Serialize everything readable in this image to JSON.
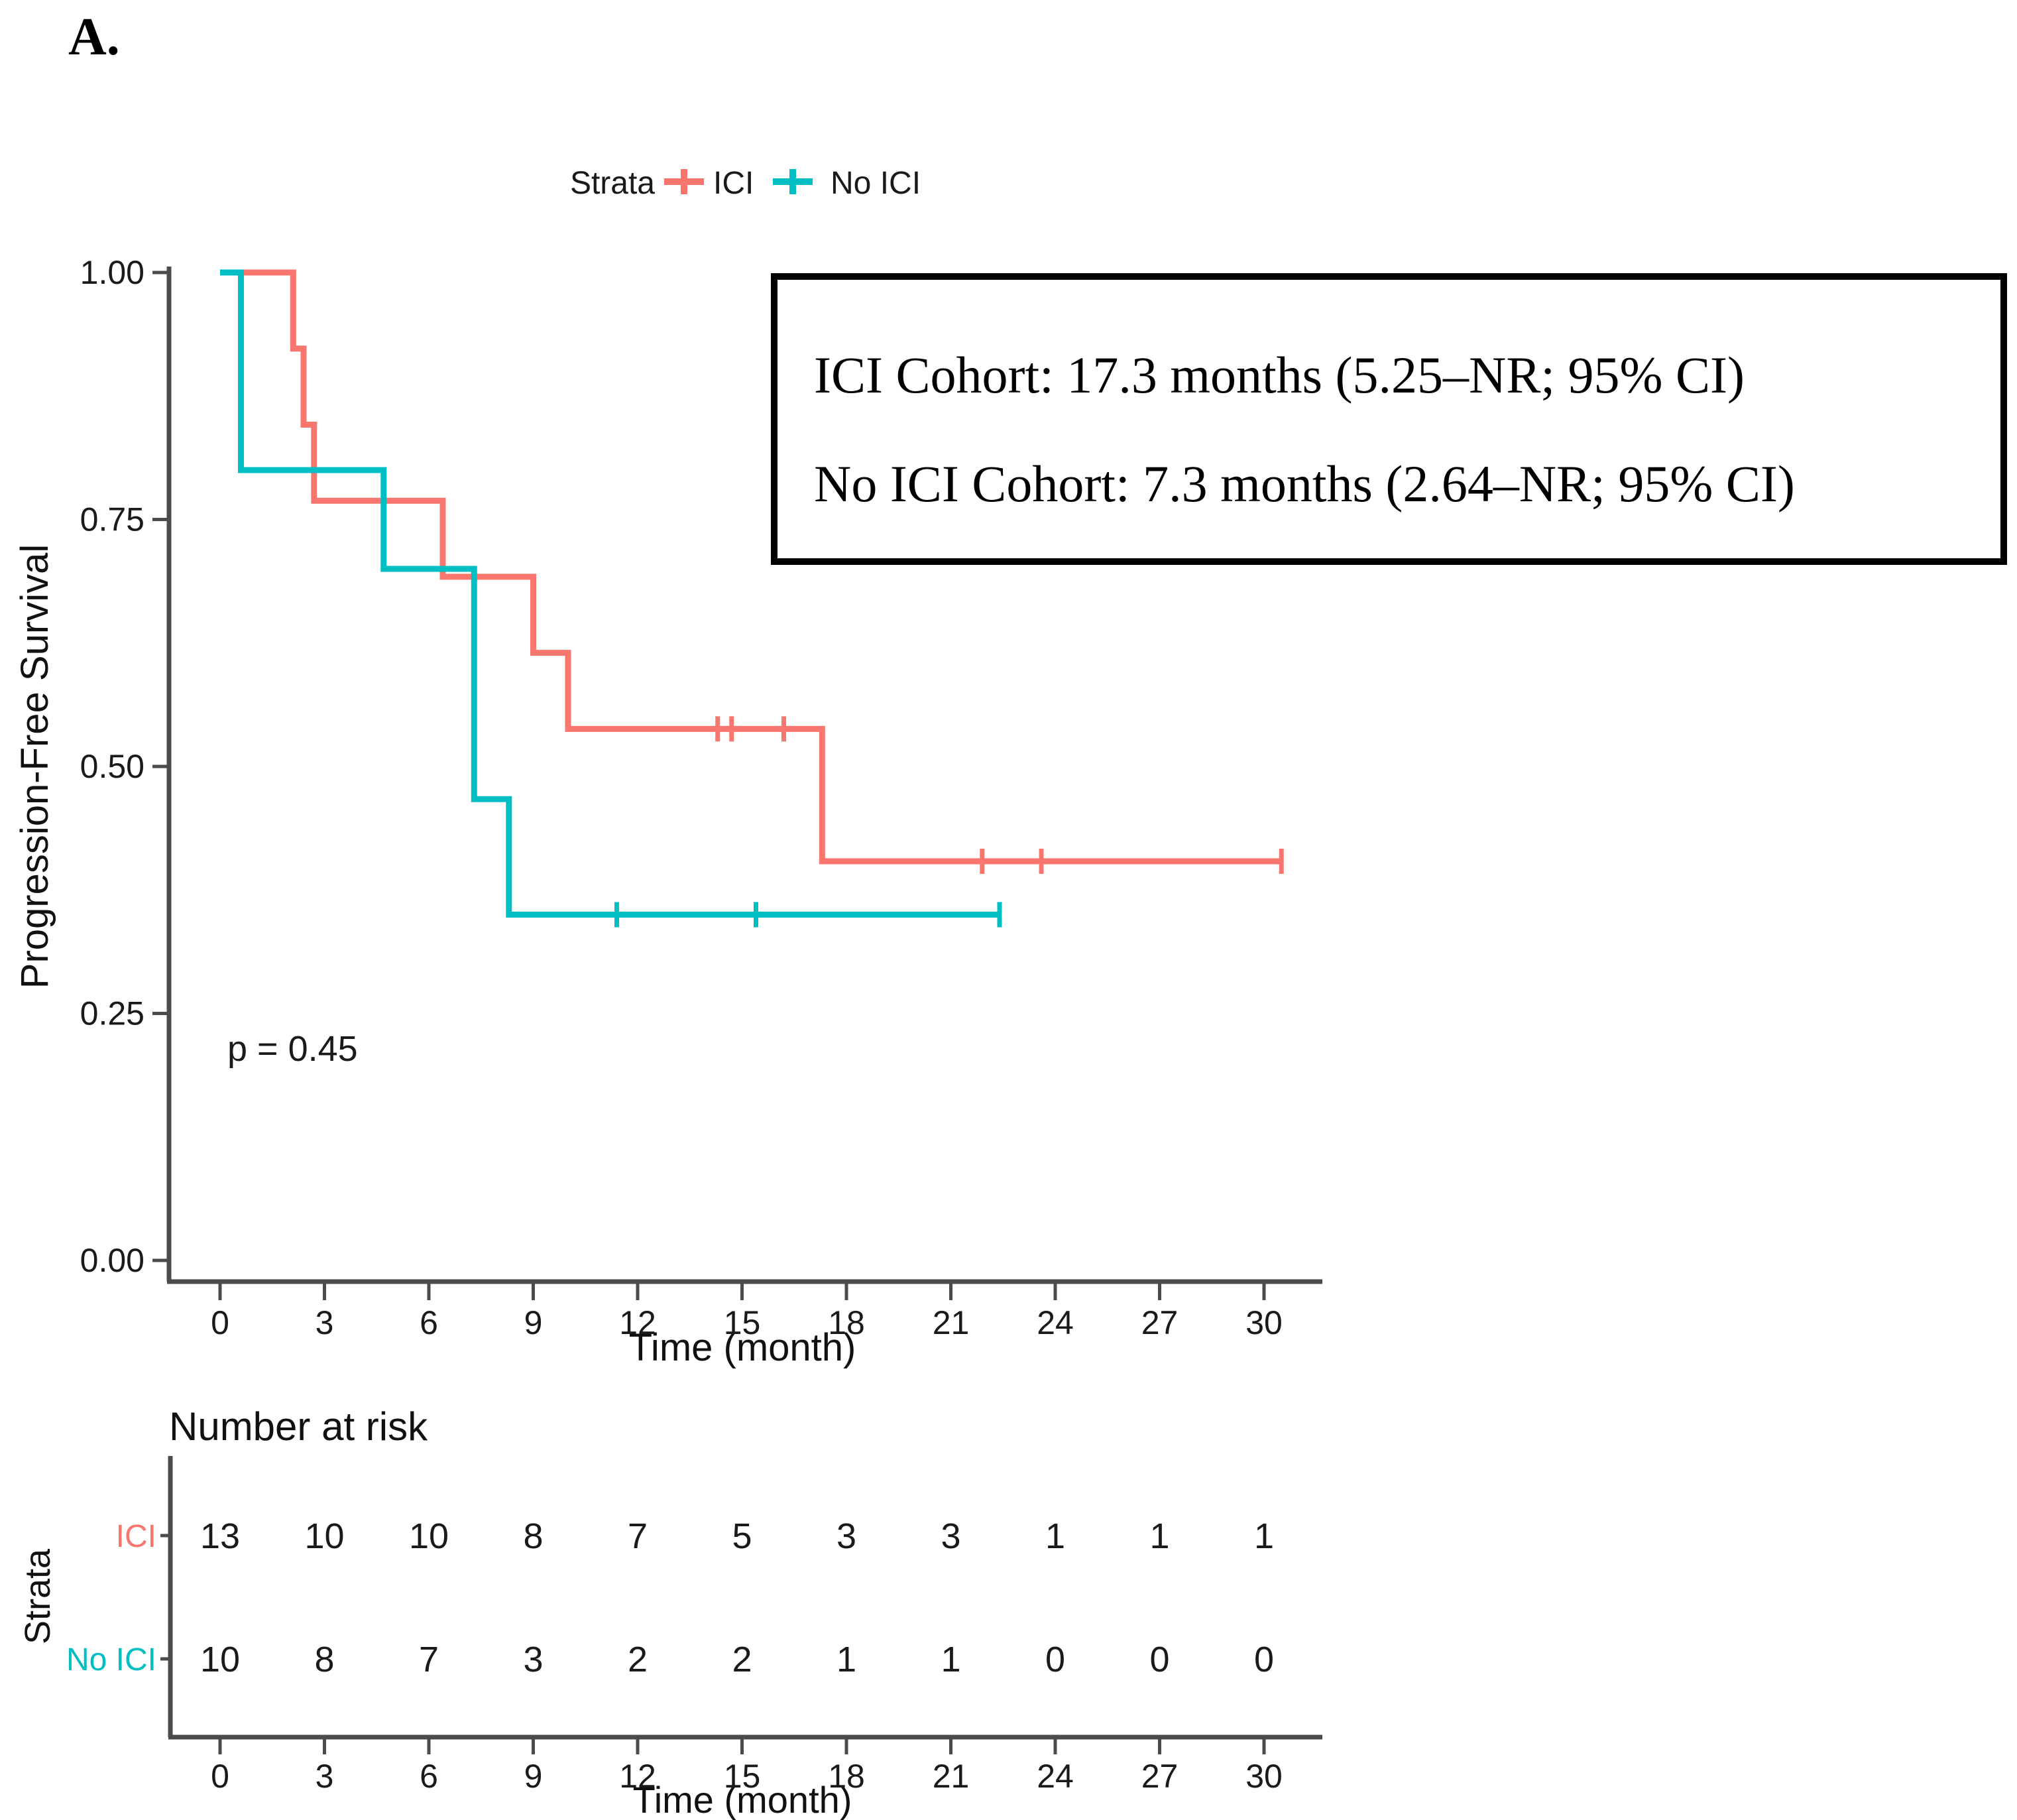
{
  "figure": {
    "panel_label": "A.",
    "background": "#ffffff"
  },
  "legend": {
    "title": "Strata",
    "items": [
      {
        "label": "ICI",
        "color": "#F8766D"
      },
      {
        "label": "No ICI",
        "color": "#00BFC4"
      }
    ]
  },
  "annotation_box": {
    "line1": "ICI Cohort: 17.3 months (5.25–NR; 95% CI)",
    "line2": "No ICI Cohort: 7.3 months (2.64–NR; 95% CI)"
  },
  "p_value_text": "p = 0.45",
  "chart_data": {
    "type": "line",
    "subtype": "kaplan-meier-step-curve",
    "title": "",
    "xlabel": "Time (month)",
    "ylabel": "Progression-Free Survival",
    "xlim": [
      0,
      31.5
    ],
    "ylim": [
      0.0,
      1.0
    ],
    "grid": false,
    "legend_position": "top",
    "xticks": [
      0,
      3,
      6,
      9,
      12,
      15,
      18,
      21,
      24,
      27,
      30
    ],
    "ytick_labels": [
      "0.00",
      "0.25",
      "0.50",
      "0.75",
      "1.00"
    ],
    "ytick_values": [
      0.0,
      0.25,
      0.5,
      0.75,
      1.0
    ],
    "series": [
      {
        "name": "ICI",
        "color": "#F8766D",
        "median_months": 17.3,
        "steps": [
          [
            0,
            1.0
          ],
          [
            2.1,
            1.0
          ],
          [
            2.1,
            0.923
          ],
          [
            2.4,
            0.923
          ],
          [
            2.4,
            0.846
          ],
          [
            2.7,
            0.846
          ],
          [
            2.7,
            0.769
          ],
          [
            6.4,
            0.769
          ],
          [
            6.4,
            0.692
          ],
          [
            9.0,
            0.692
          ],
          [
            9.0,
            0.615
          ],
          [
            10.0,
            0.615
          ],
          [
            10.0,
            0.538
          ],
          [
            17.3,
            0.538
          ],
          [
            17.3,
            0.404
          ],
          [
            30.5,
            0.404
          ]
        ],
        "censor_marks": [
          [
            14.3,
            0.538
          ],
          [
            14.7,
            0.538
          ],
          [
            16.2,
            0.538
          ],
          [
            21.9,
            0.404
          ],
          [
            23.6,
            0.404
          ],
          [
            30.5,
            0.404
          ]
        ]
      },
      {
        "name": "No ICI",
        "color": "#00BFC4",
        "median_months": 7.3,
        "steps": [
          [
            0,
            1.0
          ],
          [
            0.6,
            1.0
          ],
          [
            0.6,
            0.8
          ],
          [
            4.7,
            0.8
          ],
          [
            4.7,
            0.7
          ],
          [
            7.3,
            0.7
          ],
          [
            7.3,
            0.467
          ],
          [
            8.3,
            0.467
          ],
          [
            8.3,
            0.35
          ],
          [
            22.4,
            0.35
          ]
        ],
        "censor_marks": [
          [
            11.4,
            0.35
          ],
          [
            15.4,
            0.35
          ],
          [
            22.4,
            0.35
          ]
        ]
      }
    ]
  },
  "risk_table": {
    "heading": "Number at risk",
    "axis_label": "Strata",
    "xlabel": "Time (month)",
    "times": [
      0,
      3,
      6,
      9,
      12,
      15,
      18,
      21,
      24,
      27,
      30
    ],
    "rows": [
      {
        "label": "ICI",
        "color": "#F8766D",
        "values": [
          13,
          10,
          10,
          8,
          7,
          5,
          3,
          3,
          1,
          1,
          1
        ]
      },
      {
        "label": "No ICI",
        "color": "#00BFC4",
        "values": [
          10,
          8,
          7,
          3,
          2,
          2,
          1,
          1,
          0,
          0,
          0
        ]
      }
    ]
  }
}
